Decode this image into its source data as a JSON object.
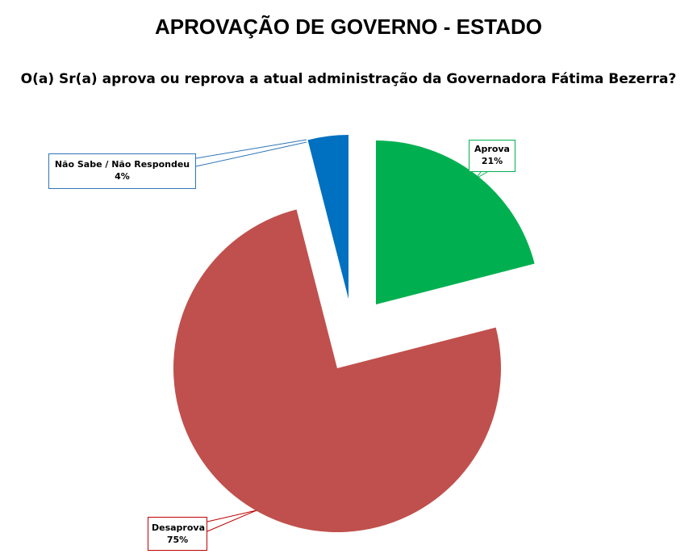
{
  "title": "APROVAÇÃO DE GOVERNO - ESTADO",
  "subtitle": "O(a) Sr(a) aprova ou reprova a atual administração da Governadora Fátima Bezerra?",
  "chart_data": {
    "type": "pie",
    "title": "APROVAÇÃO DE GOVERNO - ESTADO",
    "subtitle": "O(a) Sr(a) aprova ou reprova a atual administração da Governadora Fátima Bezerra?",
    "slices": [
      {
        "label": "Aprova",
        "value": 21,
        "value_label": "21%",
        "color": "#00b050",
        "exploded": true
      },
      {
        "label": "Desaprova",
        "value": 75,
        "value_label": "75%",
        "color": "#c0504d",
        "exploded": false
      },
      {
        "label": "Não Sabe / Não Respondeu",
        "value": 4,
        "value_label": "4%",
        "color": "#0070c0",
        "exploded": true
      }
    ],
    "start_angle": "12 o'clock",
    "direction": "clockwise",
    "labels": "callouts with leader lines"
  }
}
